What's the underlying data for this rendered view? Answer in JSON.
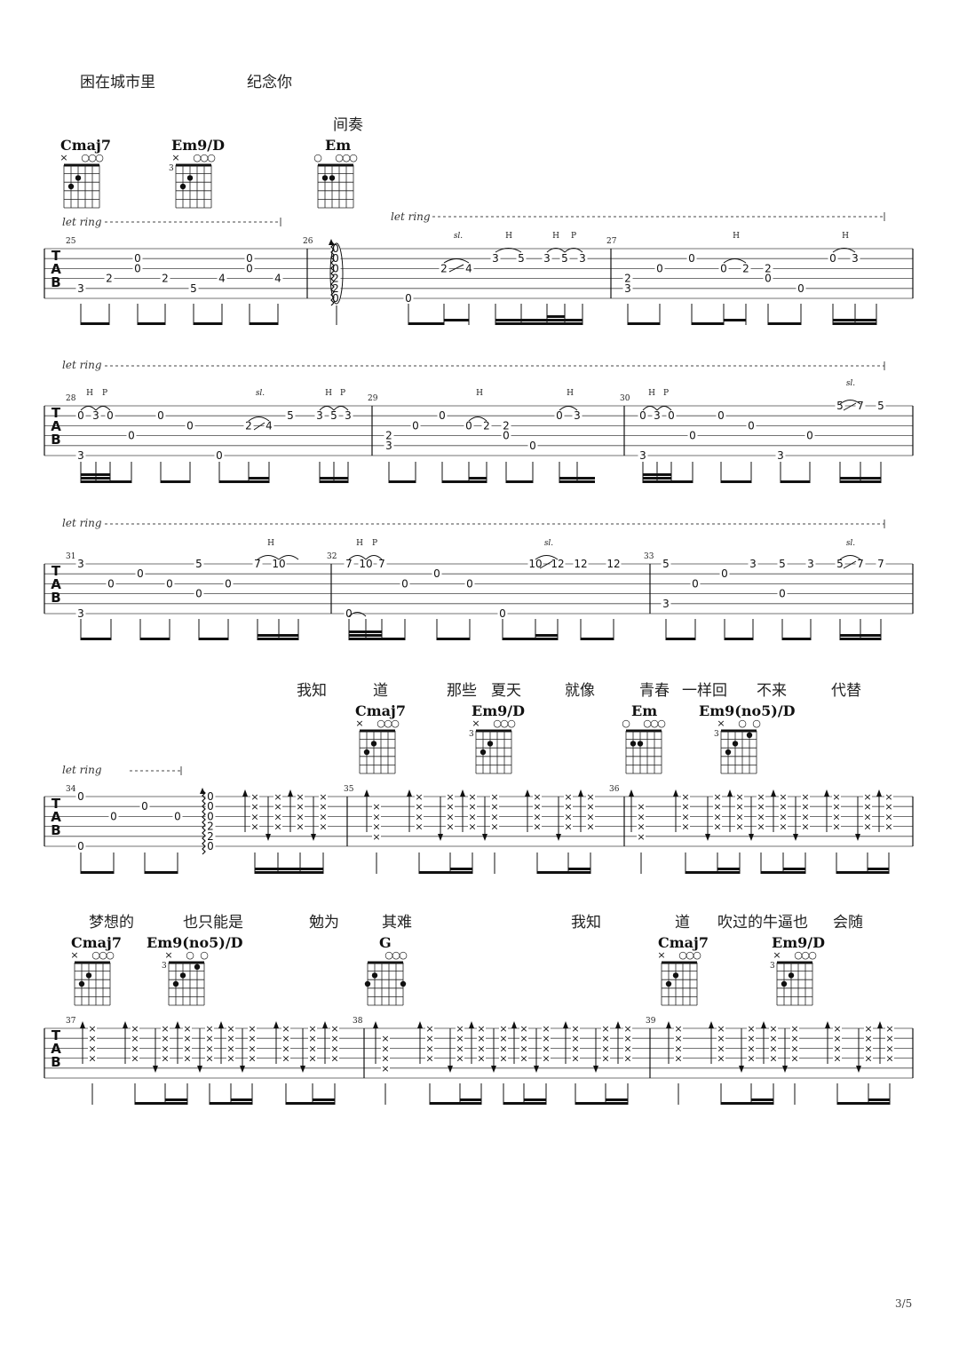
{
  "lyrics": {
    "line1": [
      "困在城市里",
      "纪念你"
    ],
    "interlude": "间奏",
    "line2": [
      "我知",
      "道",
      "那些",
      "夏天",
      "就像",
      "青春",
      "一样回",
      "不来",
      "代替"
    ],
    "line3": [
      "梦想的",
      "也只能是",
      "勉为",
      "其难",
      "我知",
      "道",
      "吹过的牛逼也",
      "会随"
    ]
  },
  "chords": {
    "row1": [
      "Cmaj7",
      "Em9/D",
      "Em"
    ],
    "row2": [
      "Cmaj7",
      "Em9/D",
      "Em",
      "Em9(no5)/D"
    ],
    "row3": [
      "Cmaj7",
      "Em9(no5)/D",
      "G",
      "Cmaj7",
      "Em9/D"
    ]
  },
  "let_ring": "let ring",
  "technique": {
    "hammer": "H",
    "pull": "P",
    "slide": "sl."
  },
  "tab_clef": [
    "T",
    "A",
    "B"
  ],
  "measures": [
    "25",
    "26",
    "27",
    "28",
    "29",
    "30",
    "31",
    "32",
    "33",
    "34",
    "35",
    "36",
    "37",
    "38",
    "39"
  ],
  "page_number": "3/5"
}
